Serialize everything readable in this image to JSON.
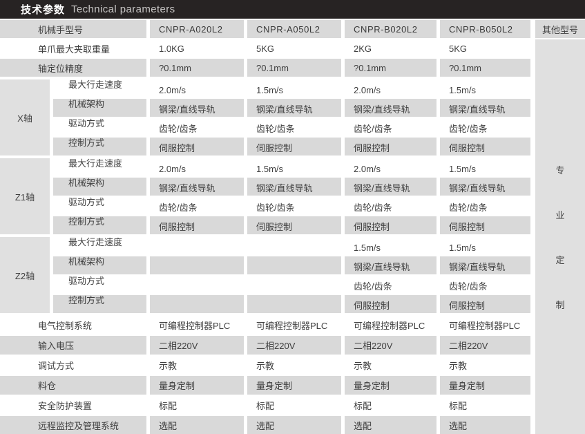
{
  "title": {
    "zh": "技术参数",
    "en": "Technical parameters"
  },
  "colors": {
    "header_bar": "#272323",
    "stripe_gray": "#d9d9d9",
    "block_gray": "#e0e0e0",
    "text": "#3f3f3f"
  },
  "table": {
    "header": {
      "label": "机械手型号",
      "models": [
        "CNPR-A020L2",
        "CNPR-A050L2",
        "CNPR-B020L2",
        "CNPR-B050L2"
      ],
      "other": "其他型号"
    },
    "rows_top": [
      {
        "label": "单爪最大夹取重量",
        "values": [
          "1.0KG",
          "5KG",
          "2KG",
          "5KG"
        ]
      },
      {
        "label": "轴定位精度",
        "values": [
          "?0.1mm",
          "?0.1mm",
          "?0.1mm",
          "?0.1mm"
        ]
      }
    ],
    "axis_sections": [
      {
        "axis": "X轴",
        "rows": [
          {
            "label": "最大行走速度",
            "values": [
              "2.0m/s",
              "1.5m/s",
              "2.0m/s",
              "1.5m/s"
            ]
          },
          {
            "label": "机械架构",
            "values": [
              "钢梁/直线导轨",
              "钢梁/直线导轨",
              "钢梁/直线导轨",
              "钢梁/直线导轨"
            ]
          },
          {
            "label": "驱动方式",
            "values": [
              "齿轮/齿条",
              "齿轮/齿条",
              "齿轮/齿条",
              "齿轮/齿条"
            ]
          },
          {
            "label": "控制方式",
            "values": [
              "伺服控制",
              "伺服控制",
              "伺服控制",
              "伺服控制"
            ]
          }
        ]
      },
      {
        "axis": "Z1轴",
        "rows": [
          {
            "label": "最大行走速度",
            "values": [
              "2.0m/s",
              "1.5m/s",
              "2.0m/s",
              "1.5m/s"
            ]
          },
          {
            "label": "机械架构",
            "values": [
              "钢梁/直线导轨",
              "钢梁/直线导轨",
              "钢梁/直线导轨",
              "钢梁/直线导轨"
            ]
          },
          {
            "label": "驱动方式",
            "values": [
              "齿轮/齿条",
              "齿轮/齿条",
              "齿轮/齿条",
              "齿轮/齿条"
            ]
          },
          {
            "label": "控制方式",
            "values": [
              "伺服控制",
              "伺服控制",
              "伺服控制",
              "伺服控制"
            ]
          }
        ]
      },
      {
        "axis": "Z2轴",
        "rows": [
          {
            "label": "最大行走速度",
            "values": [
              "",
              "",
              "1.5m/s",
              "1.5m/s"
            ]
          },
          {
            "label": "机械架构",
            "values": [
              "",
              "",
              "钢梁/直线导轨",
              "钢梁/直线导轨"
            ]
          },
          {
            "label": "驱动方式",
            "values": [
              "",
              "",
              "齿轮/齿条",
              "齿轮/齿条"
            ]
          },
          {
            "label": "控制方式",
            "values": [
              "",
              "",
              "伺服控制",
              "伺服控制"
            ]
          }
        ]
      }
    ],
    "rows_bottom": [
      {
        "label": "电气控制系统",
        "values": [
          "可编程控制器PLC",
          "可编程控制器PLC",
          "可编程控制器PLC",
          "可编程控制器PLC"
        ]
      },
      {
        "label": "输入电压",
        "values": [
          "二相220V",
          "二相220V",
          "二相220V",
          "二相220V"
        ]
      },
      {
        "label": "调试方式",
        "values": [
          "示教",
          "示教",
          "示教",
          "示教"
        ]
      },
      {
        "label": "料仓",
        "values": [
          "量身定制",
          "量身定制",
          "量身定制",
          "量身定制"
        ]
      },
      {
        "label": "安全防护装置",
        "values": [
          "标配",
          "标配",
          "标配",
          "标配"
        ]
      },
      {
        "label": "远程监控及管理系统",
        "values": [
          "选配",
          "选配",
          "选配",
          "选配"
        ]
      }
    ],
    "side_note": [
      "专",
      "业",
      "定",
      "制"
    ]
  }
}
